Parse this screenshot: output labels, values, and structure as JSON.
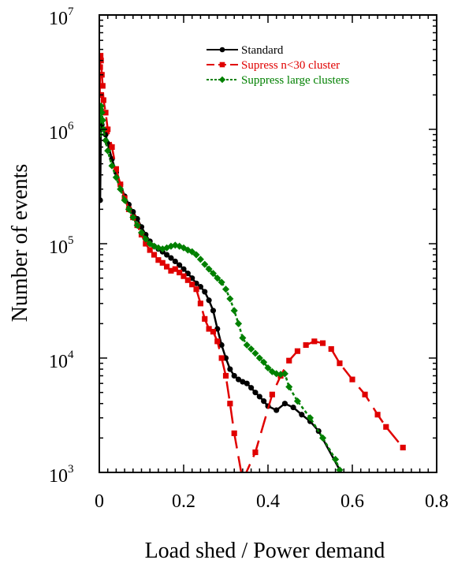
{
  "chart_data": {
    "type": "line",
    "title": "",
    "xlabel": "Load shed / Power demand",
    "ylabel": "Number of events",
    "xlim": [
      0,
      0.8
    ],
    "ylim_exponent": [
      3,
      7
    ],
    "y_scale": "log",
    "grid": false,
    "legend_position": "top-right",
    "x_ticks": [
      {
        "label": "0",
        "value": 0
      },
      {
        "label": "0.2",
        "value": 0.2
      },
      {
        "label": "0.4",
        "value": 0.4
      },
      {
        "label": "0.6",
        "value": 0.6
      },
      {
        "label": "0.8",
        "value": 0.8
      }
    ],
    "y_ticks": [
      {
        "base": "10",
        "exp": "3",
        "value": 1000
      },
      {
        "base": "10",
        "exp": "4",
        "value": 10000
      },
      {
        "base": "10",
        "exp": "5",
        "value": 100000
      },
      {
        "base": "10",
        "exp": "6",
        "value": 1000000
      },
      {
        "base": "10",
        "exp": "7",
        "value": 10000000
      }
    ],
    "series": [
      {
        "name": "Standard",
        "color": "#000000",
        "line": "solid",
        "marker": "circle",
        "points": [
          [
            0.002,
            240000
          ],
          [
            0.004,
            1200000
          ],
          [
            0.006,
            1100000
          ],
          [
            0.01,
            1000000
          ],
          [
            0.015,
            900000
          ],
          [
            0.02,
            750000
          ],
          [
            0.03,
            550000
          ],
          [
            0.04,
            420000
          ],
          [
            0.05,
            330000
          ],
          [
            0.06,
            260000
          ],
          [
            0.07,
            220000
          ],
          [
            0.08,
            190000
          ],
          [
            0.09,
            165000
          ],
          [
            0.1,
            140000
          ],
          [
            0.11,
            120000
          ],
          [
            0.12,
            105000
          ],
          [
            0.13,
            95000
          ],
          [
            0.14,
            90000
          ],
          [
            0.15,
            85000
          ],
          [
            0.16,
            80000
          ],
          [
            0.17,
            75000
          ],
          [
            0.18,
            70000
          ],
          [
            0.19,
            65000
          ],
          [
            0.2,
            60000
          ],
          [
            0.21,
            55000
          ],
          [
            0.22,
            50000
          ],
          [
            0.23,
            45000
          ],
          [
            0.24,
            42000
          ],
          [
            0.25,
            38000
          ],
          [
            0.26,
            32000
          ],
          [
            0.27,
            26000
          ],
          [
            0.28,
            18000
          ],
          [
            0.29,
            13000
          ],
          [
            0.3,
            10000
          ],
          [
            0.31,
            8000
          ],
          [
            0.32,
            7000
          ],
          [
            0.33,
            6500
          ],
          [
            0.34,
            6200
          ],
          [
            0.35,
            6000
          ],
          [
            0.36,
            5500
          ],
          [
            0.37,
            5000
          ],
          [
            0.38,
            4600
          ],
          [
            0.39,
            4200
          ],
          [
            0.4,
            3800
          ],
          [
            0.42,
            3500
          ],
          [
            0.44,
            4000
          ],
          [
            0.46,
            3700
          ],
          [
            0.48,
            3200
          ],
          [
            0.5,
            2800
          ],
          [
            0.52,
            2300
          ],
          [
            0.58,
            900
          ]
        ]
      },
      {
        "name": "Supress n<30 cluster",
        "color": "#e00000",
        "line": "dashed",
        "marker": "square",
        "points": [
          [
            0.001,
            2000000
          ],
          [
            0.002,
            3500000
          ],
          [
            0.003,
            4400000
          ],
          [
            0.004,
            4000000
          ],
          [
            0.006,
            3000000
          ],
          [
            0.008,
            2400000
          ],
          [
            0.01,
            1800000
          ],
          [
            0.015,
            1400000
          ],
          [
            0.02,
            1000000
          ],
          [
            0.03,
            700000
          ],
          [
            0.04,
            450000
          ],
          [
            0.05,
            330000
          ],
          [
            0.06,
            250000
          ],
          [
            0.07,
            200000
          ],
          [
            0.08,
            170000
          ],
          [
            0.09,
            145000
          ],
          [
            0.1,
            120000
          ],
          [
            0.11,
            100000
          ],
          [
            0.12,
            88000
          ],
          [
            0.13,
            80000
          ],
          [
            0.14,
            72000
          ],
          [
            0.15,
            68000
          ],
          [
            0.16,
            63000
          ],
          [
            0.17,
            58000
          ],
          [
            0.18,
            60000
          ],
          [
            0.19,
            56000
          ],
          [
            0.2,
            52000
          ],
          [
            0.21,
            48000
          ],
          [
            0.22,
            44000
          ],
          [
            0.23,
            40000
          ],
          [
            0.24,
            30000
          ],
          [
            0.25,
            22000
          ],
          [
            0.26,
            18000
          ],
          [
            0.27,
            17000
          ],
          [
            0.28,
            14000
          ],
          [
            0.29,
            10000
          ],
          [
            0.3,
            7000
          ],
          [
            0.31,
            4000
          ],
          [
            0.32,
            2200
          ],
          [
            0.34,
            850
          ],
          [
            0.37,
            1500
          ],
          [
            0.41,
            4800
          ],
          [
            0.43,
            7000
          ],
          [
            0.45,
            9500
          ],
          [
            0.47,
            11500
          ],
          [
            0.49,
            13000
          ],
          [
            0.51,
            14000
          ],
          [
            0.53,
            13500
          ],
          [
            0.55,
            12000
          ],
          [
            0.57,
            9000
          ],
          [
            0.6,
            6500
          ],
          [
            0.63,
            4800
          ],
          [
            0.66,
            3200
          ],
          [
            0.68,
            2500
          ],
          [
            0.72,
            1650
          ]
        ]
      },
      {
        "name": "Suppress large clusters",
        "color": "#008000",
        "line": "dotted",
        "marker": "diamond",
        "points": [
          [
            0.001,
            900000
          ],
          [
            0.002,
            1200000
          ],
          [
            0.003,
            1500000
          ],
          [
            0.004,
            1600000
          ],
          [
            0.006,
            1400000
          ],
          [
            0.008,
            1200000
          ],
          [
            0.01,
            1000000
          ],
          [
            0.015,
            800000
          ],
          [
            0.02,
            650000
          ],
          [
            0.03,
            480000
          ],
          [
            0.04,
            380000
          ],
          [
            0.05,
            300000
          ],
          [
            0.06,
            240000
          ],
          [
            0.07,
            200000
          ],
          [
            0.08,
            170000
          ],
          [
            0.09,
            145000
          ],
          [
            0.1,
            125000
          ],
          [
            0.11,
            110000
          ],
          [
            0.12,
            100000
          ],
          [
            0.13,
            95000
          ],
          [
            0.14,
            92000
          ],
          [
            0.15,
            90000
          ],
          [
            0.16,
            92000
          ],
          [
            0.17,
            95000
          ],
          [
            0.18,
            97000
          ],
          [
            0.19,
            95000
          ],
          [
            0.2,
            92000
          ],
          [
            0.21,
            88000
          ],
          [
            0.22,
            85000
          ],
          [
            0.23,
            80000
          ],
          [
            0.24,
            73000
          ],
          [
            0.25,
            66000
          ],
          [
            0.26,
            60000
          ],
          [
            0.27,
            55000
          ],
          [
            0.28,
            50000
          ],
          [
            0.29,
            46000
          ],
          [
            0.3,
            40000
          ],
          [
            0.31,
            33000
          ],
          [
            0.32,
            26000
          ],
          [
            0.33,
            20000
          ],
          [
            0.34,
            15000
          ],
          [
            0.35,
            13000
          ],
          [
            0.36,
            12000
          ],
          [
            0.37,
            11000
          ],
          [
            0.38,
            10000
          ],
          [
            0.39,
            9200
          ],
          [
            0.4,
            8200
          ],
          [
            0.41,
            7600
          ],
          [
            0.42,
            7300
          ],
          [
            0.43,
            7200
          ],
          [
            0.44,
            7300
          ],
          [
            0.45,
            5600
          ],
          [
            0.47,
            4200
          ],
          [
            0.5,
            3000
          ],
          [
            0.53,
            2000
          ],
          [
            0.56,
            1300
          ],
          [
            0.57,
            1050
          ]
        ]
      }
    ]
  }
}
